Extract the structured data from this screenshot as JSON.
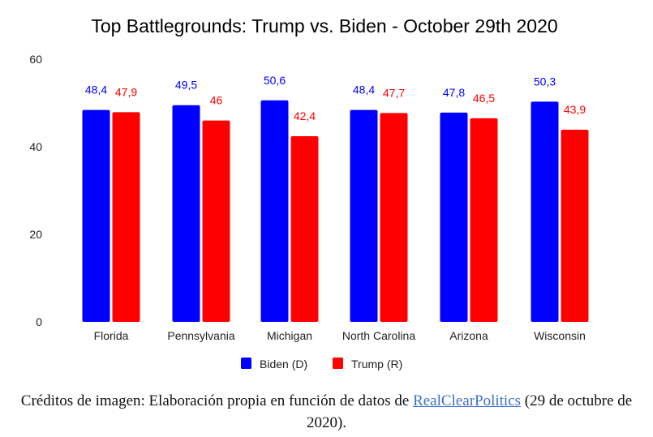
{
  "chart_data": {
    "type": "bar",
    "title": "Top Battlegrounds: Trump vs. Biden - October 29th 2020",
    "xlabel": "",
    "ylabel": "",
    "ylim": [
      0,
      60
    ],
    "yticks": [
      0,
      20,
      40,
      60
    ],
    "grid": false,
    "legend": "bottom",
    "categories": [
      "Florida",
      "Pennsylvania",
      "Michigan",
      "North Carolina",
      "Arizona",
      "Wisconsin"
    ],
    "series": [
      {
        "name": "Biden (D)",
        "color": "#0000ff",
        "values": [
          48.4,
          49.5,
          50.6,
          48.4,
          47.8,
          50.3
        ],
        "labels": [
          "48,4",
          "49,5",
          "50,6",
          "48,4",
          "47,8",
          "50,3"
        ]
      },
      {
        "name": "Trump (R)",
        "color": "#ff0000",
        "values": [
          47.9,
          46,
          42.4,
          47.7,
          46.5,
          43.9
        ],
        "labels": [
          "47,9",
          "46",
          "42,4",
          "47,7",
          "46,5",
          "43,9"
        ]
      }
    ]
  },
  "caption": {
    "prefix": "Créditos de imagen: Elaboración propia en función de datos de ",
    "link": "RealClearPolitics",
    "suffix": " (29 de octubre de 2020)."
  }
}
